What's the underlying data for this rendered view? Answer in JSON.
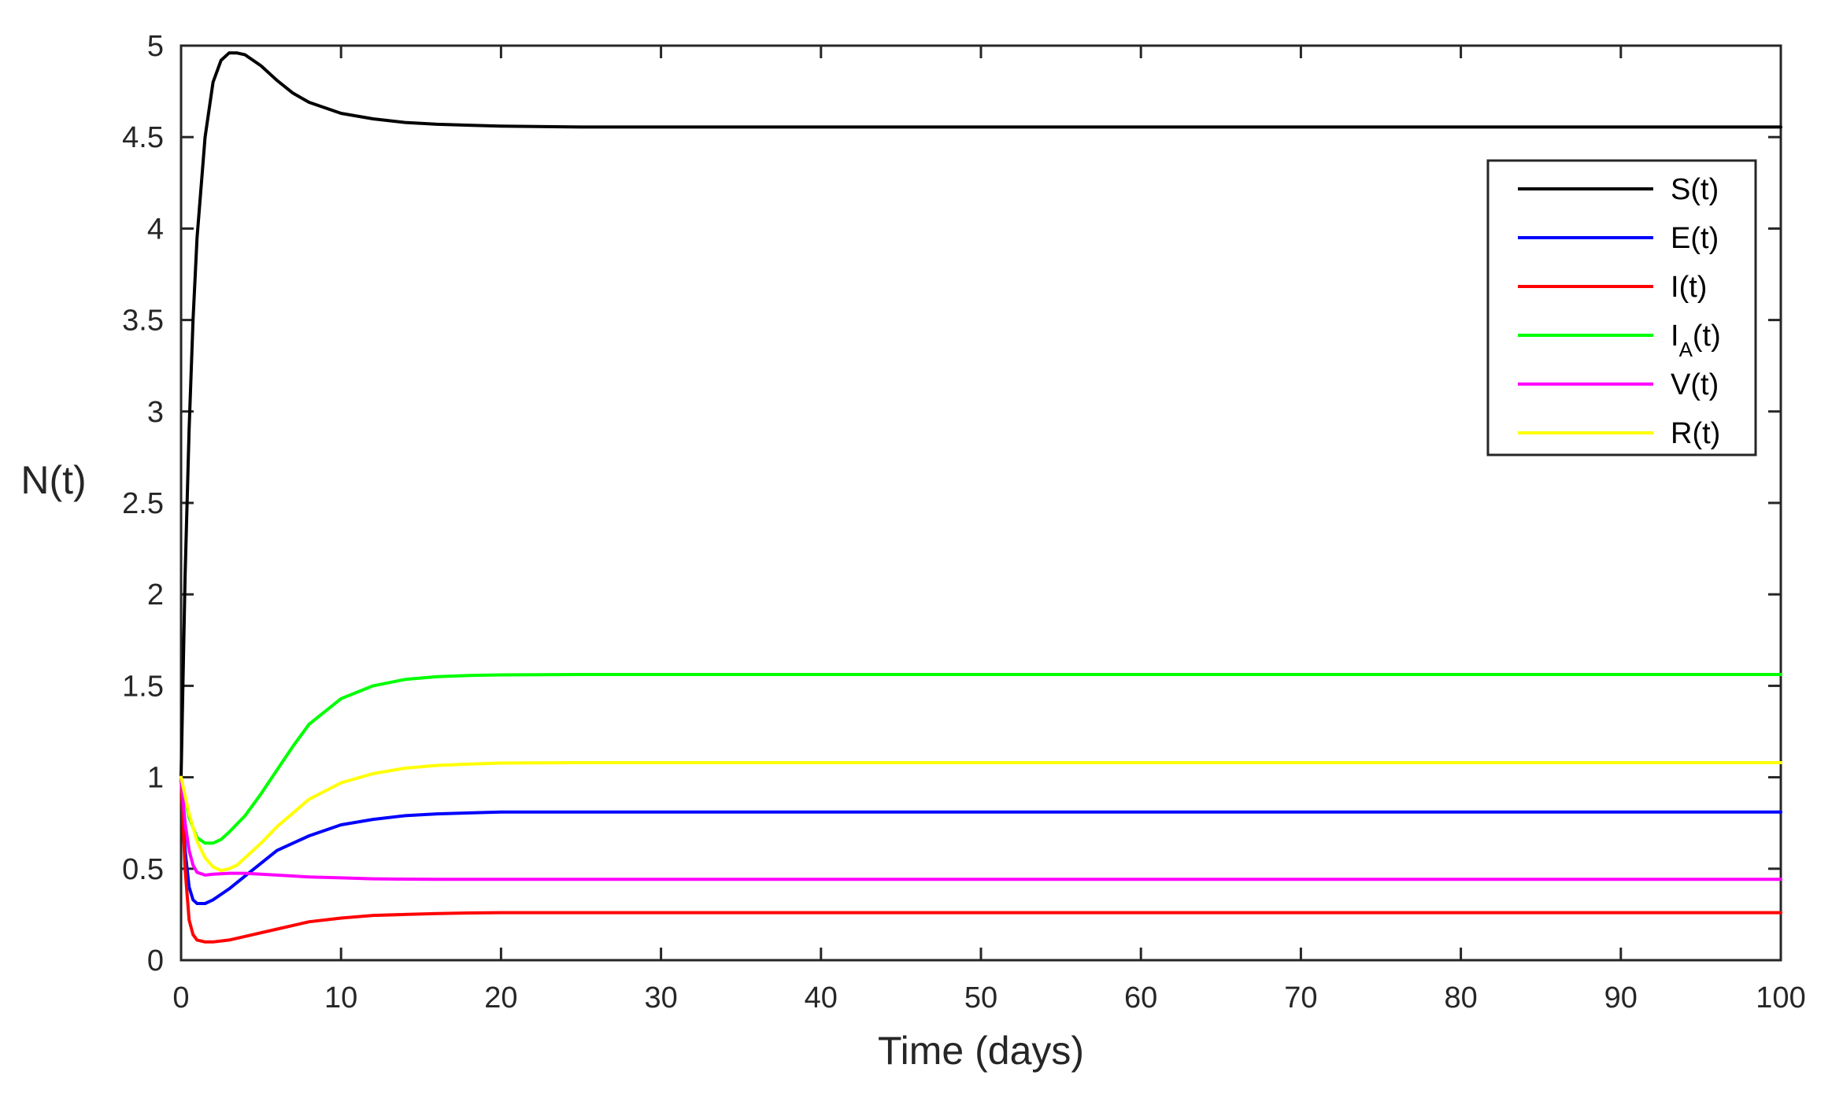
{
  "chart_data": {
    "type": "line",
    "title": "",
    "xlabel": "Time (days)",
    "ylabel": "N(t)",
    "xlim": [
      0,
      100
    ],
    "ylim": [
      0,
      5
    ],
    "xticks": [
      0,
      10,
      20,
      30,
      40,
      50,
      60,
      70,
      80,
      90,
      100
    ],
    "yticks": [
      0,
      0.5,
      1,
      1.5,
      2,
      2.5,
      3,
      3.5,
      4,
      4.5,
      5
    ],
    "xtick_labels": [
      "0",
      "10",
      "20",
      "30",
      "40",
      "50",
      "60",
      "70",
      "80",
      "90",
      "100"
    ],
    "ytick_labels": [
      "0",
      "0.5",
      "1",
      "1.5",
      "2",
      "2.5",
      "3",
      "3.5",
      "4",
      "4.5",
      "5"
    ],
    "grid": false,
    "legend_position": "top-right",
    "series": [
      {
        "key": "S",
        "name": "S(t)",
        "legend_main": "S",
        "legend_sub": "",
        "legend_tail": "(t)",
        "color": "#000000",
        "x": [
          0,
          0.25,
          0.5,
          0.75,
          1,
          1.5,
          2,
          2.5,
          3,
          3.5,
          4,
          5,
          6,
          7,
          8,
          10,
          12,
          14,
          16,
          18,
          20,
          25,
          30,
          40,
          50,
          60,
          70,
          80,
          90,
          100
        ],
        "y": [
          1,
          2.1,
          2.9,
          3.5,
          3.95,
          4.5,
          4.8,
          4.92,
          4.96,
          4.96,
          4.95,
          4.89,
          4.81,
          4.74,
          4.69,
          4.63,
          4.6,
          4.58,
          4.57,
          4.565,
          4.56,
          4.555,
          4.555,
          4.555,
          4.555,
          4.555,
          4.555,
          4.555,
          4.555,
          4.555
        ]
      },
      {
        "key": "E",
        "name": "E(t)",
        "legend_main": "E",
        "legend_sub": "",
        "legend_tail": "(t)",
        "color": "#0000ff",
        "x": [
          0,
          0.25,
          0.5,
          0.75,
          1,
          1.5,
          2,
          3,
          4,
          5,
          6,
          8,
          10,
          12,
          14,
          16,
          18,
          20,
          25,
          30,
          40,
          50,
          60,
          70,
          80,
          90,
          100
        ],
        "y": [
          1,
          0.6,
          0.4,
          0.33,
          0.31,
          0.31,
          0.33,
          0.39,
          0.46,
          0.53,
          0.6,
          0.68,
          0.74,
          0.77,
          0.79,
          0.8,
          0.805,
          0.81,
          0.81,
          0.81,
          0.81,
          0.81,
          0.81,
          0.81,
          0.81,
          0.81,
          0.81
        ]
      },
      {
        "key": "I",
        "name": "I(t)",
        "legend_main": "I",
        "legend_sub": "",
        "legend_tail": "(t)",
        "color": "#ff0000",
        "x": [
          0,
          0.25,
          0.5,
          0.75,
          1,
          1.5,
          2,
          3,
          4,
          6,
          8,
          10,
          12,
          14,
          16,
          18,
          20,
          25,
          30,
          40,
          50,
          60,
          70,
          80,
          90,
          100
        ],
        "y": [
          1,
          0.5,
          0.22,
          0.14,
          0.11,
          0.1,
          0.1,
          0.11,
          0.13,
          0.17,
          0.21,
          0.23,
          0.245,
          0.25,
          0.255,
          0.258,
          0.26,
          0.26,
          0.26,
          0.26,
          0.26,
          0.26,
          0.26,
          0.26,
          0.26,
          0.26
        ]
      },
      {
        "key": "IA",
        "name": "I_A(t)",
        "legend_main": "I",
        "legend_sub": "A",
        "legend_tail": "(t)",
        "color": "#00ff00",
        "x": [
          0,
          0.5,
          1,
          1.5,
          2,
          2.5,
          3,
          4,
          5,
          6,
          7,
          8,
          10,
          12,
          14,
          16,
          18,
          20,
          25,
          30,
          40,
          50,
          60,
          70,
          80,
          90,
          100
        ],
        "y": [
          1,
          0.78,
          0.67,
          0.64,
          0.64,
          0.66,
          0.7,
          0.79,
          0.91,
          1.04,
          1.17,
          1.29,
          1.43,
          1.5,
          1.535,
          1.55,
          1.557,
          1.56,
          1.562,
          1.562,
          1.562,
          1.562,
          1.562,
          1.562,
          1.562,
          1.562,
          1.562
        ]
      },
      {
        "key": "V",
        "name": "V(t)",
        "legend_main": "V",
        "legend_sub": "",
        "legend_tail": "(t)",
        "color": "#ff00ff",
        "x": [
          0,
          0.25,
          0.5,
          0.75,
          1,
          1.5,
          2,
          3,
          4,
          5,
          6,
          8,
          10,
          12,
          14,
          16,
          18,
          20,
          30,
          40,
          50,
          60,
          70,
          80,
          90,
          100
        ],
        "y": [
          1,
          0.75,
          0.6,
          0.52,
          0.48,
          0.465,
          0.47,
          0.475,
          0.475,
          0.47,
          0.465,
          0.455,
          0.45,
          0.445,
          0.443,
          0.442,
          0.442,
          0.442,
          0.442,
          0.442,
          0.442,
          0.442,
          0.442,
          0.442,
          0.442,
          0.442
        ]
      },
      {
        "key": "R",
        "name": "R(t)",
        "legend_main": "R",
        "legend_sub": "",
        "legend_tail": "(t)",
        "color": "#ffff00",
        "x": [
          0,
          0.5,
          1,
          1.5,
          2,
          2.5,
          3,
          3.5,
          4,
          5,
          6,
          8,
          10,
          12,
          14,
          16,
          18,
          20,
          25,
          30,
          40,
          50,
          60,
          70,
          80,
          90,
          100
        ],
        "y": [
          1,
          0.8,
          0.65,
          0.56,
          0.51,
          0.49,
          0.5,
          0.52,
          0.56,
          0.64,
          0.73,
          0.88,
          0.97,
          1.02,
          1.05,
          1.065,
          1.072,
          1.078,
          1.08,
          1.08,
          1.08,
          1.08,
          1.08,
          1.08,
          1.08,
          1.08,
          1.08
        ]
      }
    ]
  }
}
